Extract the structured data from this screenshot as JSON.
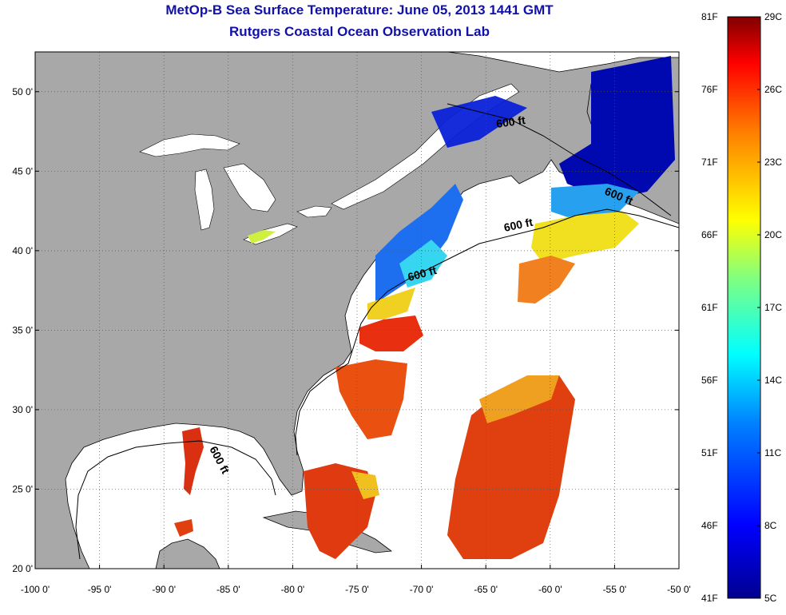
{
  "title": {
    "line1": "MetOp-B Sea Surface Temperature:  June 05, 2013 1441 GMT",
    "line2": "Rutgers Coastal Ocean Observation Lab"
  },
  "map": {
    "lon_range": [
      -100,
      -50
    ],
    "lat_range": [
      20,
      52.5
    ],
    "lon_ticks": [
      {
        "value": -100,
        "label": "-100 0'"
      },
      {
        "value": -95,
        "label": "-95 0'"
      },
      {
        "value": -90,
        "label": "-90 0'"
      },
      {
        "value": -85,
        "label": "-85 0'"
      },
      {
        "value": -80,
        "label": "-80 0'"
      },
      {
        "value": -75,
        "label": "-75 0'"
      },
      {
        "value": -70,
        "label": "-70 0'"
      },
      {
        "value": -65,
        "label": "-65 0'"
      },
      {
        "value": -60,
        "label": "-60 0'"
      },
      {
        "value": -55,
        "label": "-55 0'"
      },
      {
        "value": -50,
        "label": "-50 0'"
      }
    ],
    "lat_ticks": [
      {
        "value": 20,
        "label": "20 0'"
      },
      {
        "value": 25,
        "label": "25 0'"
      },
      {
        "value": 30,
        "label": "30 0'"
      },
      {
        "value": 35,
        "label": "35 0'"
      },
      {
        "value": 40,
        "label": "40 0'"
      },
      {
        "value": 45,
        "label": "45 0'"
      },
      {
        "value": 50,
        "label": "50 0'"
      }
    ],
    "grid": "dotted",
    "land_color": "#a8a8a8",
    "no_data_color": "#ffffff",
    "contour_labels": [
      "600 ft",
      "600 ft",
      "600 ft",
      "600 ft",
      "600 ft"
    ]
  },
  "colorbar": {
    "celsius_range": [
      5,
      29
    ],
    "celsius_ticks": [
      "29C",
      "26C",
      "23C",
      "20C",
      "17C",
      "14C",
      "11C",
      "8C",
      "5C"
    ],
    "fahrenheit_ticks": [
      "81F",
      "76F",
      "71F",
      "66F",
      "61F",
      "56F",
      "51F",
      "46F",
      "41F"
    ],
    "colormap": "jet",
    "colors": [
      "#00008f",
      "#0000ff",
      "#0080ff",
      "#00ffff",
      "#80ff80",
      "#ffff00",
      "#ff8000",
      "#ff0000",
      "#800000"
    ]
  }
}
